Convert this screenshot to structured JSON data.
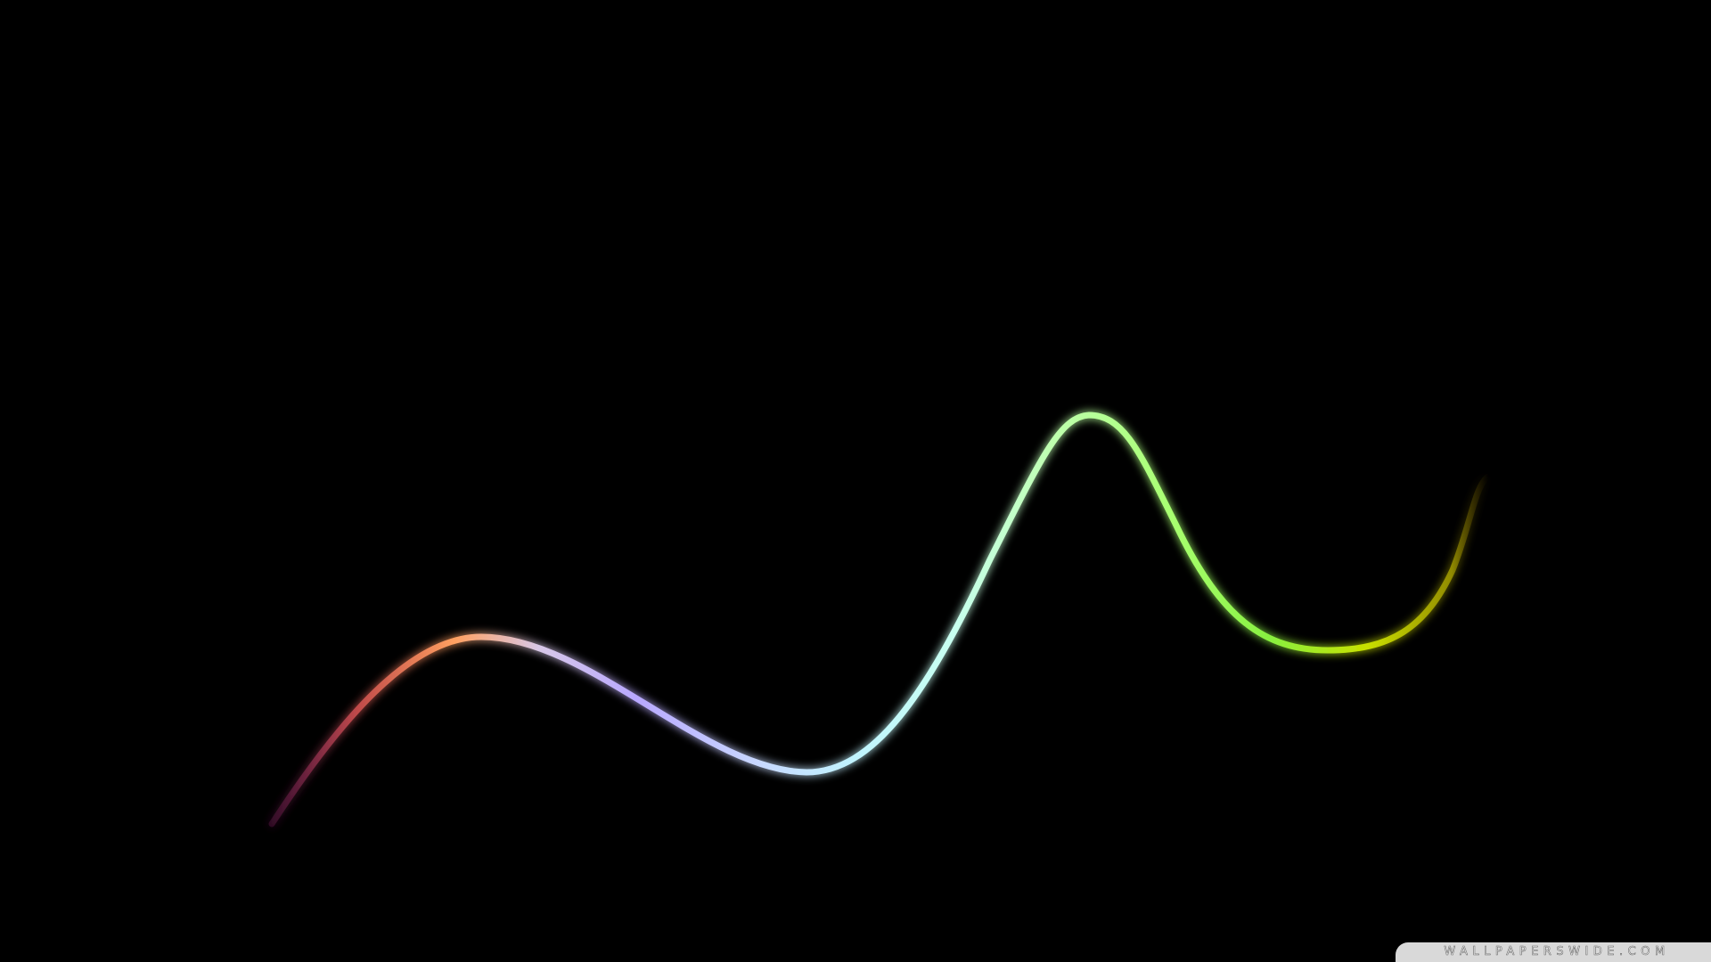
{
  "wallpaper": {
    "background_color": "#000000",
    "curve_colors": [
      "#ff9a5a",
      "#c8b6ff",
      "#bdf4ff",
      "#b8ff9a",
      "#9cff5c",
      "#f0f000"
    ],
    "axis_colors": [
      "#ff33ff",
      "#ffd0a0",
      "#c0e8ff",
      "#33ff33",
      "#d8d000"
    ],
    "watermark": {
      "text": "WALLPAPERSWIDE.COM"
    }
  }
}
